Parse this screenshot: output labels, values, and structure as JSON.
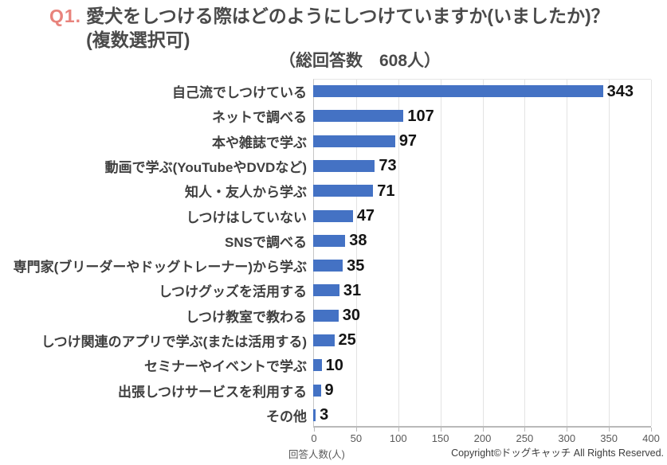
{
  "header": {
    "q_label": "Q1.",
    "title_line1": "愛犬をしつける際はどのようにしつけていますか(いましたか)？",
    "title_line2": "(複数選択可)",
    "subtitle": "（総回答数　608人）"
  },
  "chart_data": {
    "type": "bar",
    "orientation": "horizontal",
    "title": "Q1. 愛犬をしつける際はどのようにしつけていますか(いましたか)？(複数選択可)",
    "subtitle": "（総回答数　608人）",
    "categories": [
      "自己流でしつけている",
      "ネットで調べる",
      "本や雑誌で学ぶ",
      "動画で学ぶ(YouTubeやDVDなど)",
      "知人・友人から学ぶ",
      "しつけはしていない",
      "SNSで調べる",
      "専門家(ブリーダーやドッグトレーナー)から学ぶ",
      "しつけグッズを活用する",
      "しつけ教室で教わる",
      "しつけ関連のアプリで学ぶ(または活用する)",
      "セミナーやイベントで学ぶ",
      "出張しつけサービスを利用する",
      "その他"
    ],
    "values": [
      343,
      107,
      97,
      73,
      71,
      47,
      38,
      35,
      31,
      30,
      25,
      10,
      9,
      3
    ],
    "xlabel": "回答人数(人)",
    "xlim": [
      0,
      400
    ],
    "xticks": [
      0,
      50,
      100,
      150,
      200,
      250,
      300,
      350,
      400
    ],
    "grid": true,
    "legend": false,
    "value_labels": true,
    "bar_color": "#4472C4"
  },
  "colors": {
    "q_label": "#E8837C",
    "title_text": "#4a4a4a",
    "bar": "#4472C4",
    "gridline": "#e3e3e3",
    "axis": "#b9b9b9",
    "tick_text": "#595959",
    "value_text": "#141414"
  },
  "footer": {
    "copyright": "Copyright©ドッグキャッチ All Rights Reserved."
  }
}
